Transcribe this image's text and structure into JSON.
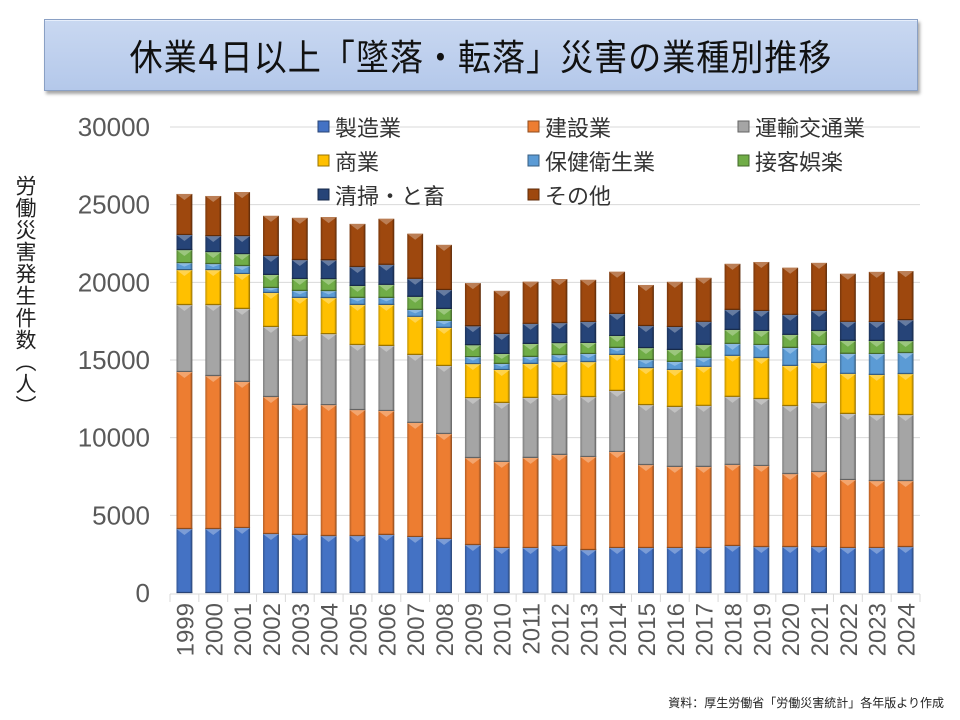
{
  "title": "休業4日以上「墜落・転落」災害の業種別推移",
  "source_note": "資料：厚生労働省「労働災害統計」各年版より作成",
  "chart_data": {
    "type": "bar",
    "stacked": true,
    "title": "休業4日以上「墜落・転落」災害の業種別推移",
    "xlabel": "",
    "ylabel": "労働災害発生件数（人）",
    "ylim": [
      0,
      30000
    ],
    "yticks": [
      0,
      5000,
      10000,
      15000,
      20000,
      25000,
      30000
    ],
    "ytick_labels": [
      "0",
      "5000",
      "10000",
      "15000",
      "20000",
      "25000",
      "30000"
    ],
    "grid": true,
    "legend_position": "top-inside",
    "categories": [
      "1999",
      "2000",
      "2001",
      "2002",
      "2003",
      "2004",
      "2005",
      "2006",
      "2007",
      "2008",
      "2009",
      "2010",
      "2011",
      "2012",
      "2013",
      "2014",
      "2015",
      "2016",
      "2017",
      "2018",
      "2019",
      "2020",
      "2021",
      "2022",
      "2023",
      "2024"
    ],
    "series": [
      {
        "name": "製造業",
        "color": "#4472c4",
        "values": [
          4120,
          4120,
          4190,
          3800,
          3740,
          3670,
          3670,
          3740,
          3610,
          3480,
          3090,
          2900,
          2900,
          3030,
          2770,
          2900,
          2900,
          2900,
          2900,
          3030,
          2960,
          2960,
          2960,
          2900,
          2900,
          2960
        ]
      },
      {
        "name": "建設業",
        "color": "#ed7d31",
        "values": [
          10110,
          9850,
          9400,
          8820,
          8370,
          8430,
          8110,
          7980,
          7340,
          6760,
          5600,
          5540,
          5800,
          5860,
          5990,
          6180,
          5340,
          5220,
          5220,
          5220,
          5220,
          4700,
          4830,
          4380,
          4310,
          4250
        ]
      },
      {
        "name": "運輸交通業",
        "color": "#a5a5a5",
        "values": [
          4310,
          4570,
          4700,
          4510,
          4440,
          4570,
          4190,
          4190,
          4380,
          4380,
          3860,
          3800,
          3860,
          3860,
          3860,
          3930,
          3860,
          3860,
          3930,
          4380,
          4310,
          4380,
          4440,
          4250,
          4250,
          4250
        ]
      },
      {
        "name": "商業",
        "color": "#ffc000",
        "values": [
          2250,
          2250,
          2250,
          2190,
          2450,
          2320,
          2580,
          2640,
          2450,
          2450,
          2190,
          2120,
          2190,
          2120,
          2250,
          2320,
          2380,
          2380,
          2510,
          2640,
          2640,
          2580,
          2580,
          2580,
          2580,
          2640
        ]
      },
      {
        "name": "保健衛生業",
        "color": "#5b9bd5",
        "values": [
          450,
          390,
          510,
          320,
          450,
          450,
          450,
          450,
          450,
          450,
          450,
          390,
          450,
          450,
          520,
          450,
          520,
          520,
          580,
          770,
          840,
          1160,
          1160,
          1290,
          1350,
          1350
        ]
      },
      {
        "name": "接客娯楽",
        "color": "#70ad47",
        "values": [
          840,
          770,
          770,
          840,
          770,
          770,
          770,
          840,
          840,
          770,
          770,
          640,
          840,
          770,
          710,
          770,
          770,
          770,
          840,
          900,
          900,
          840,
          900,
          840,
          840,
          770
        ]
      },
      {
        "name": "清掃・と畜",
        "color": "#264478",
        "values": [
          970,
          1030,
          1160,
          1220,
          1220,
          1220,
          1220,
          1290,
          1160,
          1220,
          1220,
          1290,
          1290,
          1290,
          1350,
          1420,
          1420,
          1480,
          1480,
          1290,
          1290,
          1290,
          1290,
          1220,
          1220,
          1350
        ]
      },
      {
        "name": "その他",
        "color": "#9e480e",
        "values": [
          2640,
          2580,
          2830,
          2580,
          2710,
          2770,
          2770,
          2960,
          2900,
          2900,
          2770,
          2770,
          2710,
          2830,
          2710,
          2710,
          2640,
          2900,
          2830,
          2960,
          3150,
          3030,
          3090,
          3090,
          3220,
          3150
        ]
      }
    ]
  }
}
